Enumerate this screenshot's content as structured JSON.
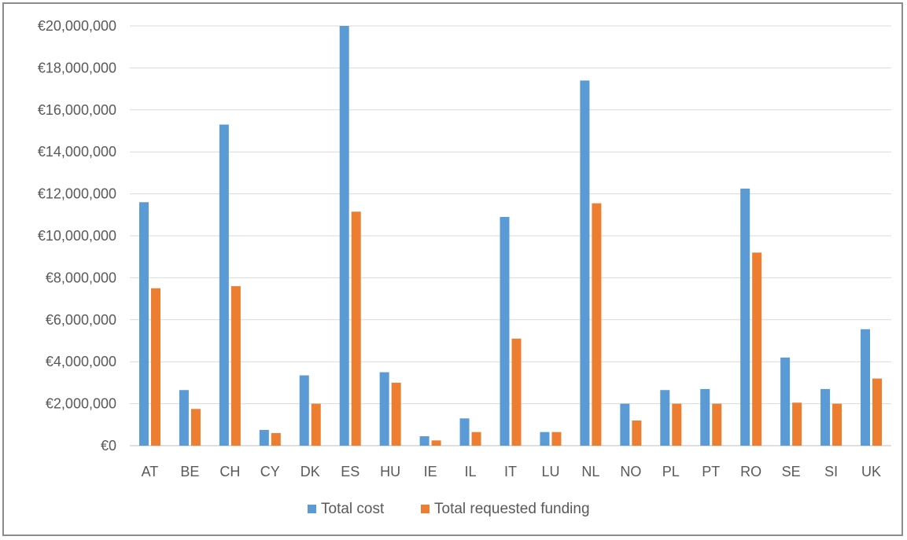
{
  "chart_data": {
    "type": "bar",
    "categories": [
      "AT",
      "BE",
      "CH",
      "CY",
      "DK",
      "ES",
      "HU",
      "IE",
      "IL",
      "IT",
      "LU",
      "NL",
      "NO",
      "PL",
      "PT",
      "RO",
      "SE",
      "SI",
      "UK"
    ],
    "series": [
      {
        "name": "Total cost",
        "color": "#5b9bd5",
        "values": [
          11600000,
          2650000,
          15300000,
          750000,
          3350000,
          20000000,
          3500000,
          450000,
          1300000,
          10900000,
          650000,
          17400000,
          2000000,
          2650000,
          2700000,
          12250000,
          4200000,
          2700000,
          5550000
        ]
      },
      {
        "name": "Total requested funding",
        "color": "#ed7d31",
        "values": [
          7500000,
          1750000,
          7600000,
          600000,
          2000000,
          11150000,
          3000000,
          250000,
          650000,
          5100000,
          650000,
          11550000,
          1200000,
          2000000,
          2000000,
          9200000,
          2050000,
          2000000,
          3200000
        ]
      }
    ],
    "ylim": [
      0,
      20000000
    ],
    "yticks": [
      "€0",
      "€2,000,000",
      "€4,000,000",
      "€6,000,000",
      "€8,000,000",
      "€10,000,000",
      "€12,000,000",
      "€14,000,000",
      "€16,000,000",
      "€18,000,000",
      "€20,000,000"
    ],
    "ytick_values": [
      0,
      2000000,
      4000000,
      6000000,
      8000000,
      10000000,
      12000000,
      14000000,
      16000000,
      18000000,
      20000000
    ],
    "grid": true,
    "legend_position": "bottom",
    "gridline_color": "#d9d9d9",
    "axis_color": "#bfbfbf"
  }
}
